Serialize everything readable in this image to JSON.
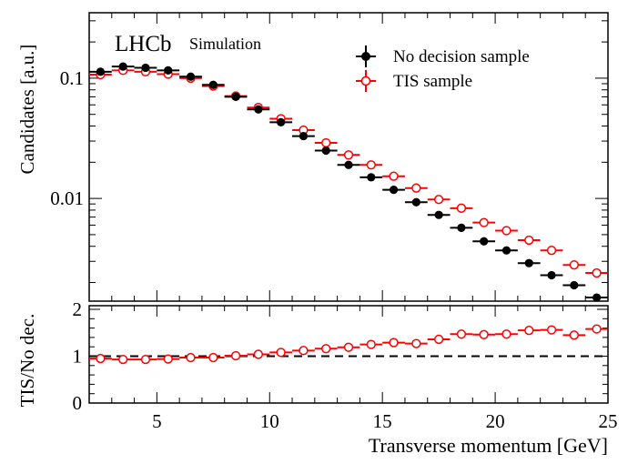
{
  "chart_data": [
    {
      "type": "scatter",
      "panel": "main",
      "title": "",
      "label_main": "LHCb",
      "label_sub": "Simulation",
      "xlabel": "",
      "ylabel": "Candidates [a.u.]",
      "yscale": "log",
      "xlim": [
        2,
        25
      ],
      "ylim": [
        0.0014,
        0.35
      ],
      "yticks": [
        {
          "value": 0.1,
          "label": "0.1"
        },
        {
          "value": 0.01,
          "label": "0.01"
        }
      ],
      "legend_position": "top-right",
      "series": [
        {
          "name": "No decision sample",
          "color": "#000000",
          "marker": "filled-circle",
          "x": [
            2.5,
            3.5,
            4.5,
            5.5,
            6.5,
            7.5,
            8.5,
            9.5,
            10.5,
            11.5,
            12.5,
            13.5,
            14.5,
            15.5,
            16.5,
            17.5,
            18.5,
            19.5,
            20.5,
            21.5,
            22.5,
            23.5,
            24.5
          ],
          "values": [
            0.113,
            0.125,
            0.122,
            0.116,
            0.103,
            0.088,
            0.07,
            0.055,
            0.043,
            0.033,
            0.025,
            0.019,
            0.015,
            0.0118,
            0.0093,
            0.0073,
            0.0057,
            0.0044,
            0.0037,
            0.0029,
            0.0023,
            0.0019,
            0.0015
          ]
        },
        {
          "name": "TIS sample",
          "color": "#ff0000",
          "marker": "open-circle",
          "x": [
            2.5,
            3.5,
            4.5,
            5.5,
            6.5,
            7.5,
            8.5,
            9.5,
            10.5,
            11.5,
            12.5,
            13.5,
            14.5,
            15.5,
            16.5,
            17.5,
            18.5,
            19.5,
            20.5,
            21.5,
            22.5,
            23.5,
            24.5
          ],
          "values": [
            0.107,
            0.116,
            0.113,
            0.108,
            0.1,
            0.086,
            0.071,
            0.057,
            0.046,
            0.037,
            0.029,
            0.023,
            0.019,
            0.0153,
            0.0122,
            0.0098,
            0.0083,
            0.0063,
            0.0054,
            0.0045,
            0.0037,
            0.0028,
            0.0024
          ]
        }
      ]
    },
    {
      "type": "scatter",
      "panel": "ratio",
      "title": "",
      "xlabel": "Transverse momentum [GeV]",
      "ylabel": "TIS/No dec.",
      "xlim": [
        2,
        25
      ],
      "ylim": [
        0,
        2
      ],
      "xticks": [
        5,
        10,
        15,
        20,
        25
      ],
      "yticks": [
        0,
        1,
        2
      ],
      "reference_line": 1,
      "series": [
        {
          "name": "TIS/No dec.",
          "color": "#ff0000",
          "marker": "open-circle",
          "x": [
            2.5,
            3.5,
            4.5,
            5.5,
            6.5,
            7.5,
            8.5,
            9.5,
            10.5,
            11.5,
            12.5,
            13.5,
            14.5,
            15.5,
            16.5,
            17.5,
            18.5,
            19.5,
            20.5,
            21.5,
            22.5,
            23.5,
            24.5
          ],
          "values": [
            0.95,
            0.93,
            0.93,
            0.94,
            0.97,
            0.97,
            1.01,
            1.04,
            1.08,
            1.12,
            1.16,
            1.19,
            1.25,
            1.29,
            1.27,
            1.36,
            1.47,
            1.46,
            1.47,
            1.55,
            1.56,
            1.45,
            1.58
          ]
        }
      ]
    }
  ]
}
